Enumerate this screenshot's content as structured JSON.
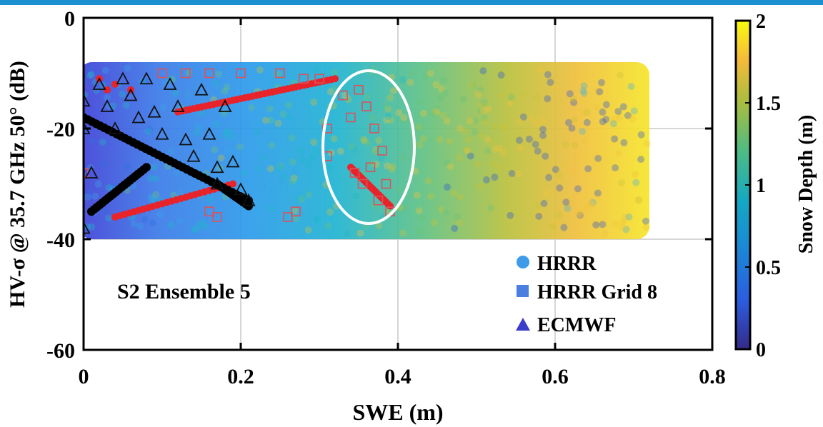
{
  "chart_data": {
    "type": "scatter",
    "title": "",
    "xlabel": "SWE (m)",
    "ylabel": "HV-σ @ 35.7 GHz 50° (dB)",
    "xlim": [
      0,
      0.8
    ],
    "ylim": [
      -60,
      0
    ],
    "xticks": [
      "0",
      "0.2",
      "0.4",
      "0.6",
      "0.8"
    ],
    "yticks": [
      "0",
      "-20",
      "-40",
      "-60"
    ],
    "grid": true,
    "legend_position": "bottom-right",
    "annotation": "S2 Ensemble 5",
    "colorbar": {
      "label": "Snow Depth (m)",
      "range": [
        0,
        2
      ],
      "ticks": [
        "0",
        "0.5",
        "1",
        "1.5",
        "2"
      ],
      "colormap": "parula"
    },
    "series": [
      {
        "name": "HRRR",
        "marker": "circle",
        "color": "#3d9be9",
        "swe_range": [
          0,
          0.72
        ],
        "sigma_range": [
          -40,
          -8
        ],
        "snow_depth_range": [
          0,
          2
        ]
      },
      {
        "name": "HRRR Grid 8",
        "marker": "square",
        "color": "#4a7fe0",
        "points": [
          [
            0.0,
            -28
          ],
          [
            0.1,
            -10
          ],
          [
            0.13,
            -10
          ],
          [
            0.16,
            -10
          ],
          [
            0.2,
            -10
          ],
          [
            0.25,
            -10
          ],
          [
            0.28,
            -11
          ],
          [
            0.3,
            -11
          ],
          [
            0.16,
            -35
          ],
          [
            0.17,
            -36
          ],
          [
            0.26,
            -36
          ],
          [
            0.27,
            -35
          ],
          [
            0.31,
            -20
          ],
          [
            0.31,
            -25
          ],
          [
            0.33,
            -14
          ],
          [
            0.34,
            -18
          ],
          [
            0.35,
            -13
          ],
          [
            0.36,
            -16
          ],
          [
            0.37,
            -20
          ],
          [
            0.38,
            -24
          ],
          [
            0.345,
            -28
          ],
          [
            0.355,
            -30
          ],
          [
            0.365,
            -27
          ],
          [
            0.375,
            -33
          ],
          [
            0.385,
            -30
          ],
          [
            0.39,
            -35
          ]
        ]
      },
      {
        "name": "ECMWF",
        "marker": "triangle",
        "color": "#3c3ccc",
        "points": [
          [
            0.0,
            -38
          ],
          [
            0.0,
            -15
          ],
          [
            0.0,
            -20
          ],
          [
            0.01,
            -28
          ],
          [
            0.02,
            -12
          ],
          [
            0.03,
            -16
          ],
          [
            0.04,
            -20
          ],
          [
            0.05,
            -11
          ],
          [
            0.06,
            -14
          ],
          [
            0.07,
            -18
          ],
          [
            0.08,
            -11
          ],
          [
            0.09,
            -17
          ],
          [
            0.1,
            -21
          ],
          [
            0.11,
            -12
          ],
          [
            0.12,
            -16
          ],
          [
            0.13,
            -22
          ],
          [
            0.14,
            -25
          ],
          [
            0.15,
            -13
          ],
          [
            0.16,
            -21
          ],
          [
            0.17,
            -27
          ],
          [
            0.18,
            -16
          ],
          [
            0.19,
            -26
          ],
          [
            0.2,
            -31
          ],
          [
            0.21,
            -33
          ],
          [
            0.17,
            -30
          ]
        ]
      }
    ]
  }
}
